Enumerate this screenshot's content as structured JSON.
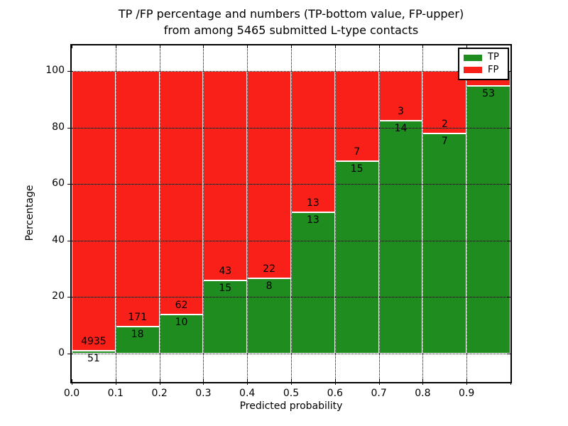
{
  "figure": {
    "title_line1": "TP /FP percentage and numbers (TP-bottom value, FP-upper)",
    "title_line2": "from among 5465 submitted L-type contacts",
    "xlabel": "Predicted probability",
    "ylabel": "Percentage"
  },
  "axes": {
    "x_tick_labels": [
      "0.0",
      "0.1",
      "0.2",
      "0.3",
      "0.4",
      "0.5",
      "0.6",
      "0.7",
      "0.8",
      "0.9"
    ],
    "y_tick_labels": [
      "0",
      "20",
      "40",
      "60",
      "80",
      "100"
    ],
    "y_tick_values": [
      0,
      20,
      40,
      60,
      80,
      100
    ]
  },
  "legend": {
    "items": [
      {
        "label": "TP",
        "color": "#1e8c1e"
      },
      {
        "label": "FP",
        "color": "#fa201a"
      }
    ]
  },
  "chart_data": {
    "type": "bar",
    "stacked": true,
    "title": "TP /FP percentage and numbers (TP-bottom value, FP-upper) from among 5465 submitted L-type contacts",
    "xlabel": "Predicted probability",
    "ylabel": "Percentage",
    "grid": "dotted",
    "legend_position": "upper right",
    "ylim_displayed": [
      0,
      100
    ],
    "bins": [
      "0.0-0.1",
      "0.1-0.2",
      "0.2-0.3",
      "0.3-0.4",
      "0.4-0.5",
      "0.5-0.6",
      "0.6-0.7",
      "0.7-0.8",
      "0.8-0.9",
      "0.9-1.0"
    ],
    "series": [
      {
        "name": "TP",
        "color": "#1e8c1e",
        "percent": [
          1.0,
          9.5,
          13.9,
          25.9,
          26.7,
          50.0,
          68.2,
          82.4,
          77.8,
          94.6
        ],
        "labels": [
          "51",
          "18",
          "10",
          "15",
          "8",
          "13",
          "15",
          "14",
          "7",
          "53"
        ]
      },
      {
        "name": "FP",
        "color": "#fa201a",
        "percent": [
          99.0,
          90.5,
          86.1,
          74.1,
          73.3,
          50.0,
          31.8,
          17.6,
          22.2,
          5.4
        ],
        "labels": [
          "4935",
          "171",
          "62",
          "43",
          "22",
          "13",
          "7",
          "3",
          "2",
          ""
        ]
      }
    ]
  }
}
